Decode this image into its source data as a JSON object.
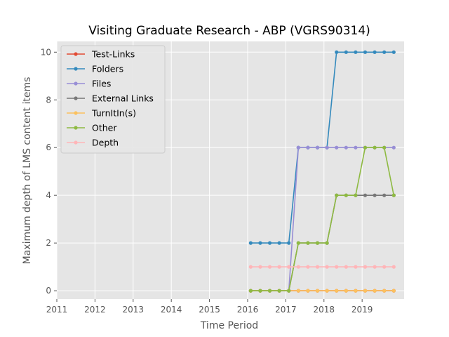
{
  "chart_data": {
    "type": "line",
    "title": "Visiting Graduate Research - ABP (VGRS90314)",
    "xlabel": "Time Period",
    "ylabel": "Maximum depth of LMS content items",
    "xlim": [
      2011.0,
      2020.1
    ],
    "ylim": [
      -0.35,
      10.45
    ],
    "xticks": [
      2011,
      2012,
      2013,
      2014,
      2015,
      2016,
      2017,
      2018,
      2019
    ],
    "yticks": [
      0,
      2,
      4,
      6,
      8,
      10
    ],
    "grid": true,
    "legend_position": "top-left",
    "x": [
      2016.08,
      2016.33,
      2016.58,
      2016.83,
      2017.08,
      2017.33,
      2017.58,
      2017.83,
      2018.08,
      2018.33,
      2018.58,
      2018.83,
      2019.08,
      2019.33,
      2019.58,
      2019.83
    ],
    "series": [
      {
        "name": "Test-Links",
        "color": "#E24A33",
        "values": [
          0,
          0,
          0,
          0,
          0,
          0,
          0,
          0,
          0,
          0,
          0,
          0,
          0,
          0,
          0,
          0
        ]
      },
      {
        "name": "Folders",
        "color": "#348ABD",
        "values": [
          2,
          2,
          2,
          2,
          2,
          6,
          6,
          6,
          6,
          10,
          10,
          10,
          10,
          10,
          10,
          10
        ]
      },
      {
        "name": "Files",
        "color": "#988ED5",
        "values": [
          0,
          0,
          0,
          0,
          0,
          6,
          6,
          6,
          6,
          6,
          6,
          6,
          6,
          6,
          6,
          6
        ]
      },
      {
        "name": "External Links",
        "color": "#777777",
        "values": [
          0,
          0,
          0,
          0,
          0,
          2,
          2,
          2,
          2,
          4,
          4,
          4,
          4,
          4,
          4,
          4
        ]
      },
      {
        "name": "TurnItIn(s)",
        "color": "#FBC15E",
        "values": [
          0,
          0,
          0,
          0,
          0,
          0,
          0,
          0,
          0,
          0,
          0,
          0,
          0,
          0,
          0,
          0
        ]
      },
      {
        "name": "Other",
        "color": "#8EBA42",
        "values": [
          0,
          0,
          0,
          0,
          0,
          2,
          2,
          2,
          2,
          4,
          4,
          4,
          6,
          6,
          6,
          4
        ]
      },
      {
        "name": "Depth",
        "color": "#FFB5B8",
        "values": [
          1,
          1,
          1,
          1,
          1,
          1,
          1,
          1,
          1,
          1,
          1,
          1,
          1,
          1,
          1,
          1
        ]
      }
    ]
  }
}
